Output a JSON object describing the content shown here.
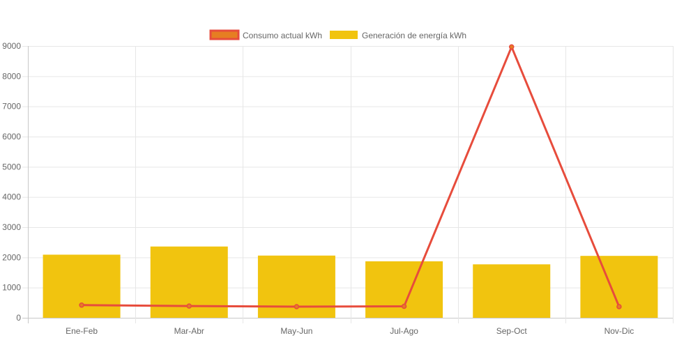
{
  "chart_data": {
    "type": "bar",
    "categories": [
      "Ene-Feb",
      "Mar-Abr",
      "May-Jun",
      "Jul-Ago",
      "Sep-Oct",
      "Nov-Dic"
    ],
    "series": [
      {
        "name": "Consumo actual kWh",
        "type": "line",
        "values": [
          420,
          390,
          370,
          380,
          8970,
          370
        ],
        "color": "#e74c3c",
        "fill": "#e67e22"
      },
      {
        "name": "Generación de energía kWh",
        "type": "bar",
        "values": [
          2090,
          2360,
          2060,
          1870,
          1770,
          2050
        ],
        "color": "#f1c40f"
      }
    ],
    "ylim": [
      0,
      9000
    ],
    "yticks": [
      0,
      1000,
      2000,
      3000,
      4000,
      5000,
      6000,
      7000,
      8000,
      9000
    ],
    "grid": true,
    "legend_position": "top-center"
  }
}
